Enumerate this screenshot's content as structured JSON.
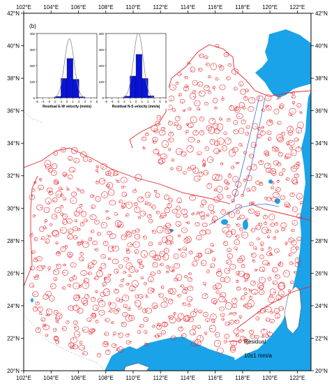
{
  "panel_label": "(b)",
  "axes": {
    "lon_ticks": [
      "102°E",
      "104°E",
      "106°E",
      "108°E",
      "110°E",
      "112°E",
      "114°E",
      "116°E",
      "118°E",
      "120°E",
      "122°E"
    ],
    "lat_ticks": [
      "42°N",
      "40°N",
      "38°N",
      "36°N",
      "34°N",
      "32°N",
      "30°N",
      "28°N",
      "26°N",
      "24°N",
      "22°N",
      "20°N"
    ],
    "lon_range": [
      102,
      123
    ],
    "lat_range": [
      20,
      42
    ]
  },
  "legend": {
    "label": "Residual",
    "scale": "10±1 mm/a"
  },
  "colors": {
    "sea": "#1aa3e8",
    "residual": "#e8262c",
    "boundary": "#e8262c",
    "fault": "#3a6fd8",
    "histogram_bar": "#0a14d6",
    "fit_curve": "#8a8a8a"
  },
  "histograms": [
    {
      "xlabel": "Residual E-W velocity (mm/a)",
      "ylabel_ticks": [
        "0",
        "100",
        "200",
        "300",
        "400"
      ],
      "xticks": [
        "-5",
        "-4",
        "-3",
        "-2",
        "-1",
        "0",
        "1",
        "2",
        "3",
        "4",
        "5"
      ],
      "ylim": [
        0,
        400
      ],
      "bins": [
        {
          "x0": -2,
          "x1": -1,
          "count": 8
        },
        {
          "x0": -1,
          "x1": 0,
          "count": 120
        },
        {
          "x0": 0,
          "x1": 1,
          "count": 245
        },
        {
          "x0": 1,
          "x1": 2,
          "count": 115
        },
        {
          "x0": 2,
          "x1": 3,
          "count": 6
        }
      ]
    },
    {
      "xlabel": "Residual N-S velocity (mm/a)",
      "ylabel_ticks": [
        "0",
        "100",
        "200",
        "300",
        "400"
      ],
      "xticks": [
        "-5",
        "-4",
        "-3",
        "-2",
        "-1",
        "0",
        "1",
        "2",
        "3",
        "4",
        "5"
      ],
      "ylim": [
        0,
        400
      ],
      "bins": [
        {
          "x0": -2,
          "x1": -1,
          "count": 10
        },
        {
          "x0": -1,
          "x1": 0,
          "count": 135
        },
        {
          "x0": 0,
          "x1": 1,
          "count": 270
        },
        {
          "x0": 1,
          "x1": 2,
          "count": 120
        },
        {
          "x0": 2,
          "x1": 3,
          "count": 12
        }
      ]
    }
  ]
}
